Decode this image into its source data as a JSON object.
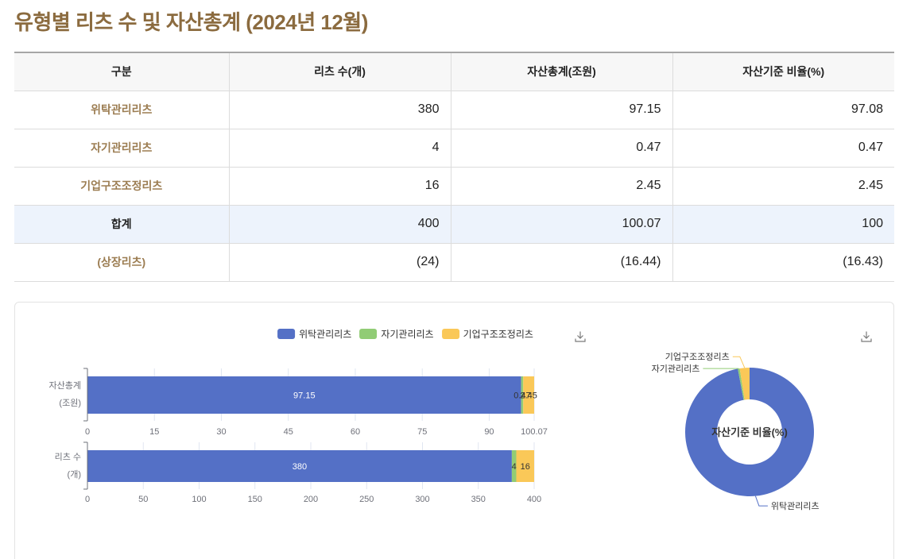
{
  "page": {
    "title": "유형별 리츠 수 및 자산총계 (2024년 12월)"
  },
  "table": {
    "headers": {
      "category": "구분",
      "count": "리츠 수(개)",
      "assets": "자산총계(조원)",
      "ratio": "자산기준 비율(%)"
    },
    "rows": [
      {
        "label": "위탁관리리츠",
        "count": "380",
        "assets": "97.15",
        "ratio": "97.08"
      },
      {
        "label": "자기관리리츠",
        "count": "4",
        "assets": "0.47",
        "ratio": "0.47"
      },
      {
        "label": "기업구조조정리츠",
        "count": "16",
        "assets": "2.45",
        "ratio": "2.45"
      },
      {
        "label": "합계",
        "count": "400",
        "assets": "100.07",
        "ratio": "100"
      },
      {
        "label": "(상장리츠)",
        "count": "(24)",
        "assets": "(16.44)",
        "ratio": "(16.43)"
      }
    ]
  },
  "colors": {
    "title": "#8b6b3f",
    "row_label": "#9c7d52",
    "total_row_background": "#edf3fc",
    "series": [
      "#5470c6",
      "#91cc75",
      "#fac858"
    ]
  },
  "icons": {
    "download": "download-icon"
  },
  "chart_data": [
    {
      "type": "bar",
      "orientation": "horizontal",
      "stacked": true,
      "legend_position": "top-center",
      "data_labels": "inside",
      "grid": true,
      "categories": [
        "자산총계",
        "리츠 수"
      ],
      "category_units": [
        "(조원)",
        "(개)"
      ],
      "series": [
        {
          "name": "위탁관리리츠",
          "values": [
            97.15,
            380
          ]
        },
        {
          "name": "자기관리리츠",
          "values": [
            0.47,
            4
          ]
        },
        {
          "name": "기업구조조정리츠",
          "values": [
            2.45,
            16
          ]
        }
      ],
      "xlims": [
        [
          0,
          100.07
        ],
        [
          0,
          400
        ]
      ],
      "xticks": [
        [
          0,
          15,
          30,
          45,
          60,
          75,
          90,
          100.07
        ],
        [
          0,
          50,
          100,
          150,
          200,
          250,
          300,
          350,
          400
        ]
      ]
    },
    {
      "type": "pie",
      "donut": true,
      "labels_position": "outside",
      "center_label": "자산기준 비율(%)",
      "labels": [
        "위탁관리리츠",
        "자기관리리츠",
        "기업구조조정리츠"
      ],
      "values": [
        97.08,
        0.47,
        2.45
      ]
    }
  ]
}
